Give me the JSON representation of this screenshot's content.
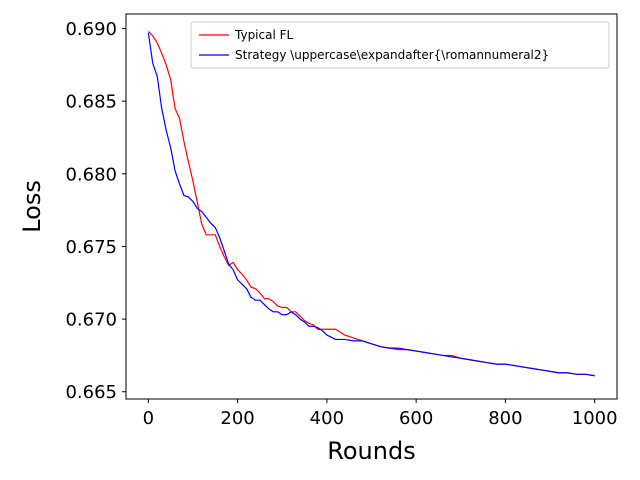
{
  "chart_data": {
    "type": "line",
    "title": "",
    "xlabel": "Rounds",
    "ylabel": "Loss",
    "xlim": [
      -50,
      1050
    ],
    "ylim": [
      0.6645,
      0.691
    ],
    "xticks": [
      0,
      200,
      400,
      600,
      800,
      1000
    ],
    "yticks": [
      0.665,
      0.67,
      0.675,
      0.68,
      0.685,
      0.69
    ],
    "xtick_labels": [
      "0",
      "200",
      "400",
      "600",
      "800",
      "1000"
    ],
    "ytick_labels": [
      "0.665",
      "0.670",
      "0.675",
      "0.680",
      "0.685",
      "0.690"
    ],
    "grid": false,
    "legend_position": "top-right",
    "series": [
      {
        "name": "Typical FL",
        "color": "#ff0000",
        "x": [
          0,
          10,
          20,
          30,
          40,
          50,
          60,
          70,
          80,
          90,
          100,
          110,
          120,
          130,
          140,
          150,
          160,
          170,
          180,
          190,
          200,
          210,
          220,
          230,
          240,
          250,
          260,
          270,
          280,
          290,
          300,
          310,
          320,
          330,
          340,
          350,
          360,
          370,
          380,
          390,
          400,
          420,
          440,
          460,
          480,
          500,
          520,
          540,
          560,
          580,
          600,
          620,
          640,
          660,
          680,
          700,
          720,
          740,
          760,
          780,
          800,
          820,
          840,
          860,
          880,
          900,
          920,
          940,
          960,
          980,
          1000
        ],
        "y": [
          0.6898,
          0.6895,
          0.689,
          0.6883,
          0.6875,
          0.6865,
          0.6845,
          0.6838,
          0.6822,
          0.6808,
          0.6795,
          0.678,
          0.6765,
          0.6758,
          0.6758,
          0.6758,
          0.675,
          0.6743,
          0.6737,
          0.6739,
          0.6734,
          0.6731,
          0.6727,
          0.6722,
          0.6721,
          0.6718,
          0.6714,
          0.6714,
          0.6712,
          0.6709,
          0.6708,
          0.6708,
          0.6705,
          0.6705,
          0.6702,
          0.6699,
          0.6697,
          0.6696,
          0.6693,
          0.6693,
          0.6693,
          0.6693,
          0.6689,
          0.6687,
          0.6685,
          0.6683,
          0.6681,
          0.668,
          0.6679,
          0.6679,
          0.6678,
          0.6677,
          0.6676,
          0.6675,
          0.6675,
          0.6673,
          0.6672,
          0.6671,
          0.667,
          0.6669,
          0.6669,
          0.6668,
          0.6667,
          0.6666,
          0.6665,
          0.6664,
          0.6663,
          0.6663,
          0.6662,
          0.6662,
          0.6661
        ]
      },
      {
        "name": "Strategy \\uppercase\\expandafter{\\romannumeral2}",
        "color": "#0000ff",
        "x": [
          0,
          10,
          20,
          30,
          40,
          50,
          60,
          70,
          80,
          90,
          100,
          110,
          120,
          130,
          140,
          150,
          160,
          170,
          180,
          190,
          200,
          210,
          220,
          230,
          240,
          250,
          260,
          270,
          280,
          290,
          300,
          310,
          320,
          330,
          340,
          350,
          360,
          370,
          380,
          390,
          400,
          420,
          440,
          460,
          480,
          500,
          520,
          540,
          560,
          580,
          600,
          620,
          640,
          660,
          680,
          700,
          720,
          740,
          760,
          780,
          800,
          820,
          840,
          860,
          880,
          900,
          920,
          940,
          960,
          980,
          1000
        ],
        "y": [
          0.6897,
          0.6876,
          0.6867,
          0.6845,
          0.683,
          0.6818,
          0.6802,
          0.6793,
          0.6785,
          0.6784,
          0.6781,
          0.6776,
          0.6774,
          0.677,
          0.6766,
          0.6763,
          0.6756,
          0.6747,
          0.6738,
          0.6734,
          0.6727,
          0.6724,
          0.6721,
          0.6715,
          0.6713,
          0.6713,
          0.671,
          0.6707,
          0.6705,
          0.6705,
          0.6703,
          0.6703,
          0.6705,
          0.6703,
          0.67,
          0.6698,
          0.6695,
          0.6695,
          0.6694,
          0.6692,
          0.6689,
          0.6686,
          0.6686,
          0.6685,
          0.6685,
          0.6683,
          0.6681,
          0.668,
          0.668,
          0.6679,
          0.6678,
          0.6677,
          0.6676,
          0.6675,
          0.6674,
          0.6673,
          0.6672,
          0.6671,
          0.667,
          0.6669,
          0.6669,
          0.6668,
          0.6667,
          0.6666,
          0.6665,
          0.6664,
          0.6663,
          0.6663,
          0.6662,
          0.6662,
          0.6661
        ]
      }
    ]
  }
}
